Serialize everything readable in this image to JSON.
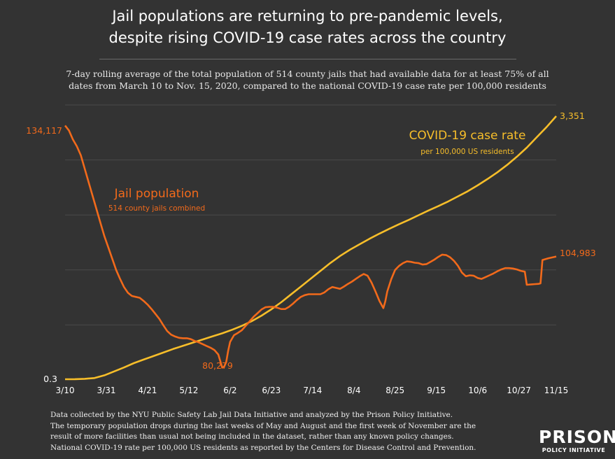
{
  "header": {
    "title_line1": "Jail populations are returning to pre-pandemic levels,",
    "title_line2": "despite rising COVID-19 case rates across the country",
    "subtitle_line1": "7-day rolling average of the total population of 514 county jails that had available data for at least 75% of all",
    "subtitle_line2": "dates from March 10 to Nov. 15, 2020, compared to the national COVID-19 case rate per 100,000 residents"
  },
  "colors": {
    "background": "#333333",
    "grid": "#4a4a4a",
    "jail": "#f26a1b",
    "covid": "#f7be2a",
    "text": "#ffffff"
  },
  "chart_data": {
    "type": "line",
    "x_ticks": [
      "3/10",
      "3/31",
      "4/21",
      "5/12",
      "6/2",
      "6/23",
      "7/14",
      "8/4",
      "8/25",
      "9/15",
      "10/6",
      "10/27",
      "11/15"
    ],
    "x_tick_days": [
      0,
      21,
      42,
      63,
      84,
      105,
      126,
      147,
      168,
      189,
      210,
      231,
      250
    ],
    "x_range_days": [
      0,
      250
    ],
    "grid": "horizontal",
    "series": [
      {
        "name": "Jail population",
        "note": "514 county jails combined",
        "axis": "left",
        "y_range": [
          78000,
          139000
        ],
        "start_label": "134,117",
        "min_label": "80,279",
        "end_label": "104,983",
        "points": [
          [
            0,
            134117
          ],
          [
            2,
            133000
          ],
          [
            4,
            131000
          ],
          [
            6,
            129500
          ],
          [
            8,
            127500
          ],
          [
            10,
            124500
          ],
          [
            12,
            121500
          ],
          [
            14,
            118500
          ],
          [
            16,
            115500
          ],
          [
            18,
            112500
          ],
          [
            20,
            109500
          ],
          [
            22,
            107000
          ],
          [
            24,
            104500
          ],
          [
            26,
            102000
          ],
          [
            28,
            100000
          ],
          [
            30,
            98200
          ],
          [
            32,
            96900
          ],
          [
            34,
            96200
          ],
          [
            36,
            96000
          ],
          [
            38,
            95800
          ],
          [
            40,
            95100
          ],
          [
            42,
            94300
          ],
          [
            44,
            93300
          ],
          [
            46,
            92200
          ],
          [
            48,
            91100
          ],
          [
            50,
            89700
          ],
          [
            52,
            88400
          ],
          [
            54,
            87600
          ],
          [
            56,
            87200
          ],
          [
            58,
            86900
          ],
          [
            60,
            86800
          ],
          [
            62,
            86800
          ],
          [
            64,
            86600
          ],
          [
            66,
            86200
          ],
          [
            68,
            85900
          ],
          [
            70,
            85500
          ],
          [
            72,
            85100
          ],
          [
            74,
            84700
          ],
          [
            76,
            84200
          ],
          [
            78,
            83200
          ],
          [
            80,
            80279
          ],
          [
            81,
            80500
          ],
          [
            82,
            81500
          ],
          [
            83,
            84000
          ],
          [
            84,
            86000
          ],
          [
            86,
            87500
          ],
          [
            88,
            88000
          ],
          [
            90,
            88600
          ],
          [
            92,
            89600
          ],
          [
            94,
            90600
          ],
          [
            96,
            91600
          ],
          [
            98,
            92400
          ],
          [
            100,
            93200
          ],
          [
            102,
            93700
          ],
          [
            104,
            93800
          ],
          [
            106,
            93800
          ],
          [
            108,
            93600
          ],
          [
            110,
            93300
          ],
          [
            112,
            93300
          ],
          [
            114,
            93800
          ],
          [
            116,
            94500
          ],
          [
            118,
            95300
          ],
          [
            120,
            96000
          ],
          [
            122,
            96400
          ],
          [
            124,
            96600
          ],
          [
            126,
            96600
          ],
          [
            128,
            96600
          ],
          [
            130,
            96600
          ],
          [
            132,
            97000
          ],
          [
            134,
            97700
          ],
          [
            136,
            98200
          ],
          [
            138,
            98000
          ],
          [
            140,
            97800
          ],
          [
            142,
            98300
          ],
          [
            144,
            98900
          ],
          [
            146,
            99400
          ],
          [
            148,
            100000
          ],
          [
            150,
            100600
          ],
          [
            152,
            101100
          ],
          [
            154,
            100700
          ],
          [
            156,
            99200
          ],
          [
            158,
            97200
          ],
          [
            160,
            95100
          ],
          [
            162,
            93500
          ],
          [
            163,
            95000
          ],
          [
            164,
            97200
          ],
          [
            166,
            99900
          ],
          [
            168,
            102000
          ],
          [
            170,
            102900
          ],
          [
            172,
            103500
          ],
          [
            174,
            103900
          ],
          [
            176,
            103800
          ],
          [
            178,
            103600
          ],
          [
            180,
            103500
          ],
          [
            182,
            103200
          ],
          [
            184,
            103300
          ],
          [
            186,
            103800
          ],
          [
            188,
            104300
          ],
          [
            190,
            104900
          ],
          [
            192,
            105400
          ],
          [
            194,
            105300
          ],
          [
            196,
            104800
          ],
          [
            198,
            104000
          ],
          [
            200,
            102900
          ],
          [
            202,
            101400
          ],
          [
            204,
            100600
          ],
          [
            206,
            100800
          ],
          [
            208,
            100700
          ],
          [
            210,
            100200
          ],
          [
            212,
            100000
          ],
          [
            214,
            100400
          ],
          [
            216,
            100800
          ],
          [
            218,
            101200
          ],
          [
            220,
            101700
          ],
          [
            222,
            102100
          ],
          [
            224,
            102400
          ],
          [
            226,
            102400
          ],
          [
            228,
            102300
          ],
          [
            230,
            102100
          ],
          [
            232,
            101800
          ],
          [
            234,
            101600
          ],
          [
            235,
            98700
          ],
          [
            238,
            98800
          ],
          [
            241,
            98900
          ],
          [
            242,
            99000
          ],
          [
            243,
            104200
          ],
          [
            246,
            104600
          ],
          [
            250,
            104983
          ]
        ]
      },
      {
        "name": "COVID-19 case rate",
        "note": "per 100,000 US residents",
        "axis": "right",
        "y_range": [
          0,
          3351
        ],
        "start_label": "0.3",
        "end_label": "3,351",
        "points": [
          [
            0,
            0.3
          ],
          [
            5,
            1
          ],
          [
            10,
            5
          ],
          [
            15,
            15
          ],
          [
            20,
            50
          ],
          [
            25,
            100
          ],
          [
            30,
            150
          ],
          [
            35,
            205
          ],
          [
            40,
            250
          ],
          [
            45,
            295
          ],
          [
            50,
            340
          ],
          [
            55,
            385
          ],
          [
            60,
            425
          ],
          [
            65,
            465
          ],
          [
            70,
            505
          ],
          [
            75,
            545
          ],
          [
            80,
            585
          ],
          [
            85,
            630
          ],
          [
            90,
            680
          ],
          [
            95,
            740
          ],
          [
            100,
            810
          ],
          [
            105,
            890
          ],
          [
            110,
            980
          ],
          [
            115,
            1080
          ],
          [
            120,
            1180
          ],
          [
            125,
            1280
          ],
          [
            130,
            1380
          ],
          [
            135,
            1480
          ],
          [
            140,
            1570
          ],
          [
            145,
            1650
          ],
          [
            150,
            1720
          ],
          [
            155,
            1790
          ],
          [
            160,
            1855
          ],
          [
            165,
            1915
          ],
          [
            170,
            1975
          ],
          [
            175,
            2030
          ],
          [
            180,
            2090
          ],
          [
            185,
            2150
          ],
          [
            190,
            2205
          ],
          [
            195,
            2265
          ],
          [
            200,
            2330
          ],
          [
            205,
            2395
          ],
          [
            210,
            2470
          ],
          [
            215,
            2550
          ],
          [
            220,
            2635
          ],
          [
            225,
            2730
          ],
          [
            230,
            2835
          ],
          [
            235,
            2950
          ],
          [
            240,
            3080
          ],
          [
            245,
            3210
          ],
          [
            250,
            3351
          ]
        ]
      }
    ]
  },
  "footnote": {
    "line1": "Data collected by the NYU Public Safety Lab Jail Data Initiative and analyzed by the Prison Policy Initiative.",
    "line2": "The temporary population drops during the last weeks of May and August and the first week of November are the",
    "line3": "result of more facilities than usual not being included in the dataset, rather than any known policy changes.",
    "line4": "National COVID-19 rate per 100,000 US residents as reported by the Centers for Disease Control and Prevention."
  },
  "logo": {
    "top": "PRISON",
    "bottom": "POLICY INITIATIVE"
  }
}
